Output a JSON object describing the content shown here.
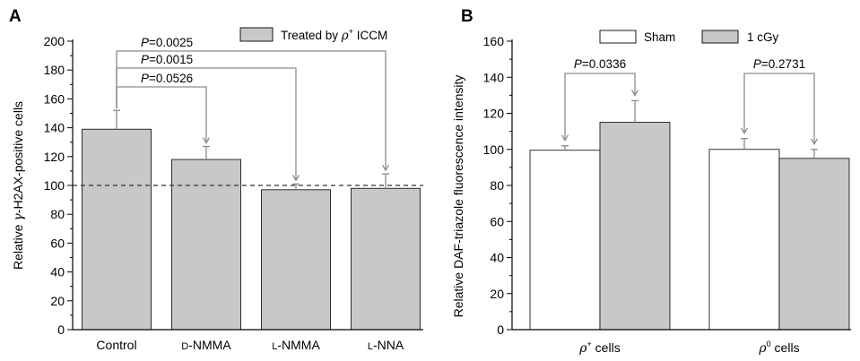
{
  "colors": {
    "gray_bar": "#c8c8c8",
    "white_bar": "#ffffff",
    "bracket": "#8c8c8c"
  },
  "chart_data": [
    {
      "panel": "A",
      "type": "bar",
      "ylabel_prefix": "Relative ",
      "ylabel_symbol": "γ",
      "ylabel_suffix": "-H2AX-positive cells",
      "ylim": [
        0,
        200
      ],
      "yticks": [
        0,
        20,
        40,
        60,
        80,
        100,
        120,
        140,
        160,
        180,
        200
      ],
      "reference_line": 100,
      "categories": [
        {
          "prefix": "",
          "main": "Control"
        },
        {
          "prefix": "D",
          "main": "-NMMA"
        },
        {
          "prefix": "L",
          "main": "-NMMA"
        },
        {
          "prefix": "L",
          "main": "-NNA"
        }
      ],
      "series": [
        {
          "name_prefix": "Treated by ",
          "name_symbol": "ρ",
          "name_sup": "+",
          "name_suffix": " ICCM",
          "color": "#c8c8c8",
          "values": [
            139,
            118,
            97,
            98
          ],
          "errors": [
            13,
            9,
            4,
            10
          ]
        }
      ],
      "comparisons": [
        {
          "from": 0,
          "to": 3,
          "label_p": "P",
          "label_value": "=0.0025"
        },
        {
          "from": 0,
          "to": 2,
          "label_p": "P",
          "label_value": "=0.0015"
        },
        {
          "from": 0,
          "to": 1,
          "label_p": "P",
          "label_value": "=0.0526"
        }
      ],
      "legend_position": "top-right"
    },
    {
      "panel": "B",
      "type": "bar",
      "ylabel": "Relative DAF-triazole fluorescence intensity",
      "ylim": [
        0,
        160
      ],
      "yticks": [
        0,
        20,
        40,
        60,
        80,
        100,
        120,
        140,
        160
      ],
      "categories": [
        {
          "symbol": "ρ",
          "sup": "+",
          "suffix": " cells"
        },
        {
          "symbol": "ρ",
          "sup": "0",
          "suffix": " cells"
        }
      ],
      "series": [
        {
          "name": "Sham",
          "color": "#ffffff",
          "values": [
            99.5,
            100
          ],
          "errors": [
            2.5,
            6
          ]
        },
        {
          "name": "1 cGy",
          "color": "#c8c8c8",
          "values": [
            115,
            95
          ],
          "errors": [
            12,
            5
          ]
        }
      ],
      "comparisons": [
        {
          "category": 0,
          "label_p": "P",
          "label_value": "=0.0336"
        },
        {
          "category": 1,
          "label_p": "P",
          "label_value": "=0.2731"
        }
      ],
      "legend_position": "top-center"
    }
  ]
}
